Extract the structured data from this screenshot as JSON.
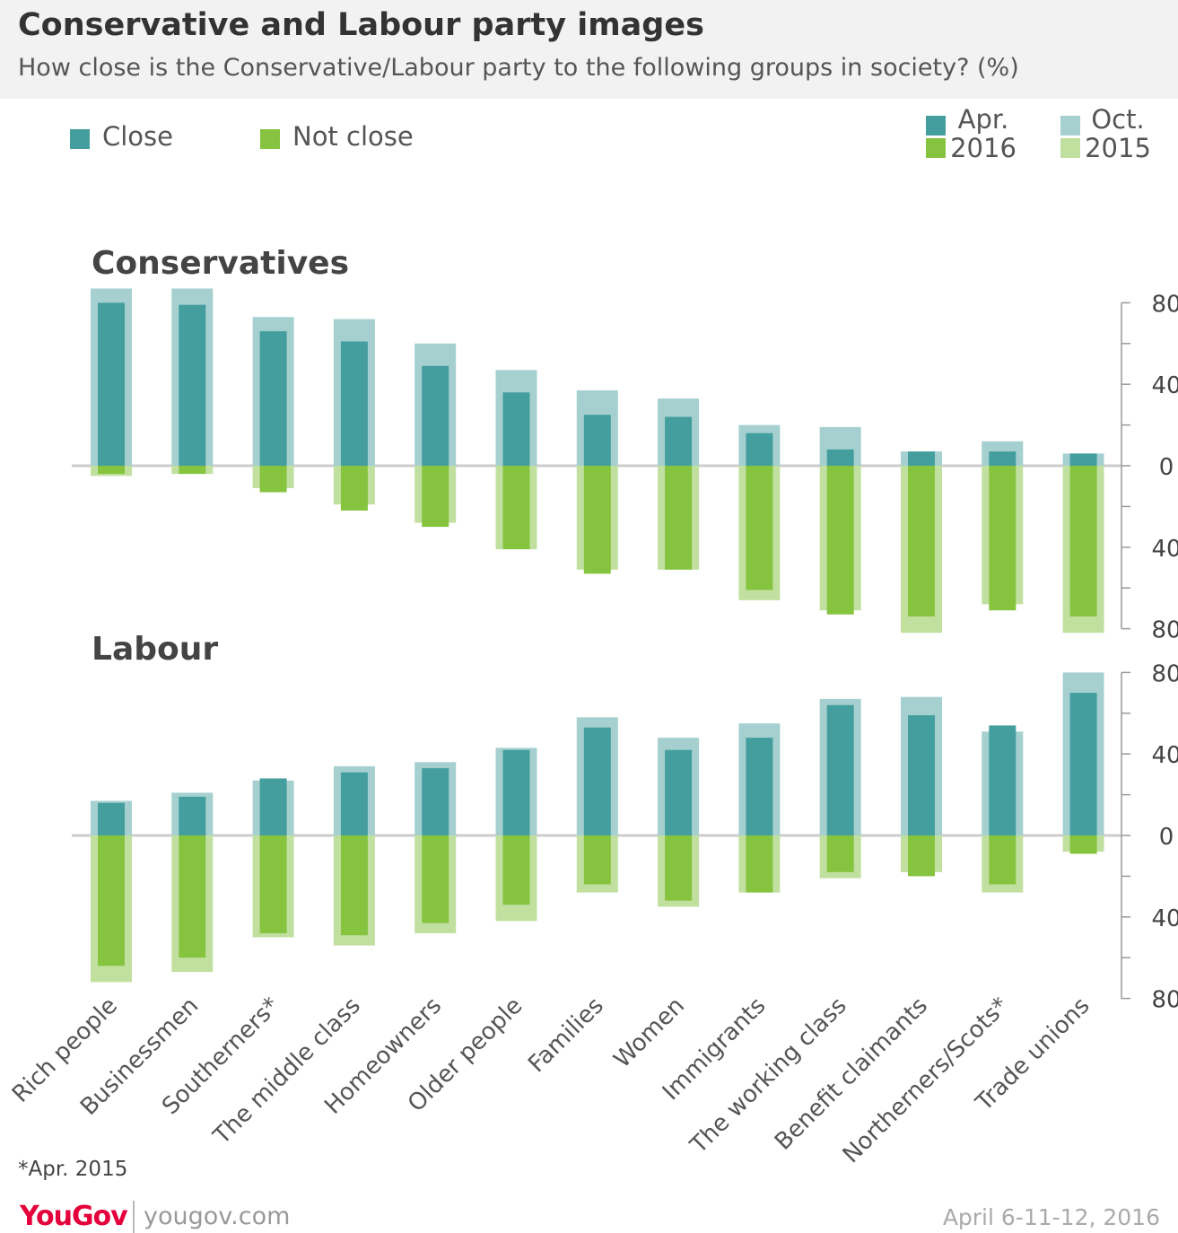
{
  "header": {
    "title": "Conservative and Labour party images",
    "subtitle": "How close is the Conservative/Labour party to the following groups in society? (%)"
  },
  "legend": {
    "close_label": "Close",
    "not_close_label": "Not close",
    "period_current_line1": "Apr.",
    "period_current_line2": "2016",
    "period_previous_line1": "Oct.",
    "period_previous_line2": "2015"
  },
  "colors": {
    "close_2016": "#449e9e",
    "close_2015": "#a6d0d0",
    "not_close_2016": "#86c440",
    "not_close_2015": "#c1e0a0",
    "zero_line": "#cccccc",
    "axis": "#999999"
  },
  "footnote": "*Apr. 2015",
  "branding": {
    "logo_text": "YouGov",
    "site": "yougov.com",
    "date": "April 6-11-12, 2016"
  },
  "chart_data": [
    {
      "type": "bar",
      "title": "Conservatives",
      "categories": [
        "Rich people",
        "Businessmen",
        "Southerners*",
        "The middle class",
        "Homeowners",
        "Older people",
        "Families",
        "Women",
        "Immigrants",
        "The working class",
        "Benefit claimants",
        "Northerners/Scots*",
        "Trade unions"
      ],
      "series": [
        {
          "name": "Close Apr. 2016",
          "values": [
            80,
            79,
            66,
            61,
            49,
            36,
            25,
            24,
            16,
            8,
            7,
            7,
            6
          ]
        },
        {
          "name": "Close Oct. 2015",
          "values": [
            87,
            87,
            73,
            72,
            60,
            47,
            37,
            33,
            20,
            19,
            7,
            12,
            6
          ]
        },
        {
          "name": "Not close Apr. 2016",
          "values": [
            4,
            4,
            13,
            22,
            30,
            41,
            53,
            51,
            61,
            73,
            74,
            71,
            74
          ]
        },
        {
          "name": "Not close Oct. 2015",
          "values": [
            5,
            4,
            11,
            19,
            28,
            41,
            51,
            51,
            66,
            71,
            82,
            68,
            82
          ]
        }
      ],
      "yticks": [
        "80",
        "40",
        "0",
        "40",
        "80"
      ],
      "ylim": [
        -80,
        80
      ]
    },
    {
      "type": "bar",
      "title": "Labour",
      "categories": [
        "Rich people",
        "Businessmen",
        "Southerners*",
        "The middle class",
        "Homeowners",
        "Older people",
        "Families",
        "Women",
        "Immigrants",
        "The working class",
        "Benefit claimants",
        "Northerners/Scots*",
        "Trade unions"
      ],
      "series": [
        {
          "name": "Close Apr. 2016",
          "values": [
            16,
            19,
            28,
            31,
            33,
            42,
            53,
            42,
            48,
            64,
            59,
            54,
            70
          ]
        },
        {
          "name": "Close Oct. 2015",
          "values": [
            17,
            21,
            27,
            34,
            36,
            43,
            58,
            48,
            55,
            67,
            68,
            51,
            80
          ]
        },
        {
          "name": "Not close Apr. 2016",
          "values": [
            64,
            60,
            48,
            49,
            43,
            34,
            24,
            32,
            28,
            18,
            20,
            24,
            9
          ]
        },
        {
          "name": "Not close Oct. 2015",
          "values": [
            72,
            67,
            50,
            54,
            48,
            42,
            28,
            35,
            28,
            21,
            18,
            28,
            8
          ]
        }
      ],
      "yticks": [
        "80",
        "40",
        "0",
        "40",
        "80"
      ],
      "ylim": [
        -80,
        80
      ]
    }
  ]
}
